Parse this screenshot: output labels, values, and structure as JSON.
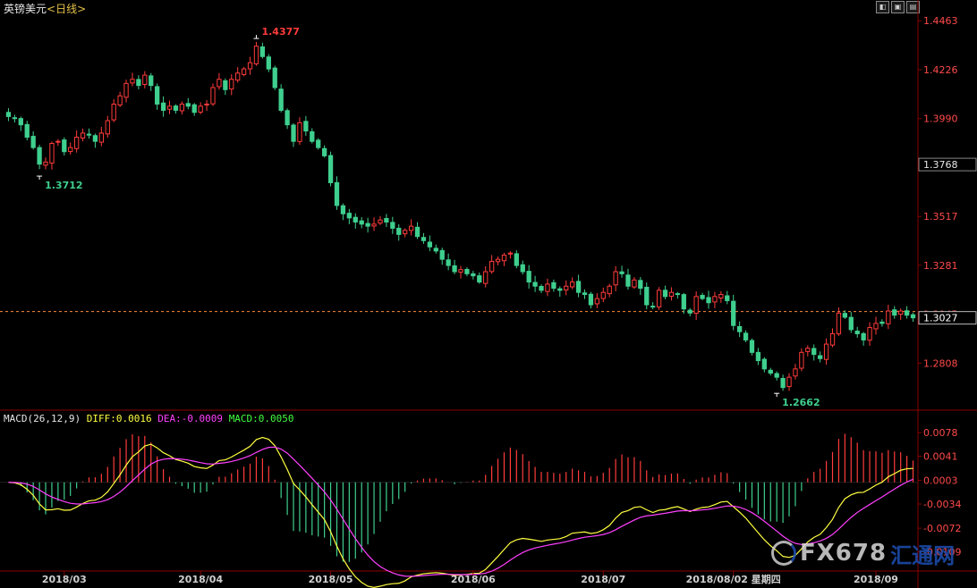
{
  "header": {
    "title": "英镑美元",
    "period": "<日线>"
  },
  "toolbar": {
    "buttons": [
      "◧",
      "▣",
      "▤"
    ]
  },
  "macd_header": {
    "params": "MACD(26,12,9)",
    "diff": "DIFF:0.0016",
    "dea": "DEA:-0.0009",
    "macd": "MACD:0.0050"
  },
  "watermark": {
    "brand": "FX678",
    "cn": "汇通网"
  },
  "colors": {
    "up": "#ff3b3b",
    "down": "#3fcf8e",
    "diff": "#ffff40",
    "dea": "#ff40ff",
    "grid": "#8a0000",
    "axis_text": "#ff4a4a",
    "dashed": "#ff8a3a",
    "date_text": "#d0d0d0"
  },
  "chart_data": [
    {
      "type": "candlestick",
      "title": "英镑美元<日线>",
      "ylim": [
        1.2585,
        1.452
      ],
      "yticks": [
        "1.4463",
        "1.4226",
        "1.3990",
        "1.3517",
        "1.3281",
        "1.3045",
        "1.2808"
      ],
      "current_price_label": "1.3768",
      "last_price_label": "1.3027",
      "last_price": 1.3027,
      "annotations": [
        {
          "label": "1.3712",
          "value": 1.3712,
          "index": 5
        },
        {
          "label": "1.4377",
          "value": 1.4377,
          "index": 40
        },
        {
          "label": "1.2662",
          "value": 1.2662,
          "index": 124
        }
      ],
      "x_labels": [
        {
          "label": "2018/03",
          "index": 9
        },
        {
          "label": "2018/04",
          "index": 31
        },
        {
          "label": "2018/05",
          "index": 52
        },
        {
          "label": "2018/06",
          "index": 75
        },
        {
          "label": "2018/07",
          "index": 96
        },
        {
          "label": "2018/08/02 星期四",
          "index": 117
        },
        {
          "label": "2018/09",
          "index": 140
        }
      ],
      "close": [
        1.4,
        1.399,
        1.396,
        1.39,
        1.385,
        1.377,
        1.378,
        1.387,
        1.388,
        1.383,
        1.385,
        1.39,
        1.392,
        1.391,
        1.388,
        1.392,
        1.398,
        1.406,
        1.41,
        1.416,
        1.418,
        1.415,
        1.42,
        1.415,
        1.406,
        1.403,
        1.405,
        1.403,
        1.406,
        1.405,
        1.402,
        1.405,
        1.406,
        1.414,
        1.418,
        1.413,
        1.418,
        1.421,
        1.423,
        1.426,
        1.434,
        1.429,
        1.423,
        1.414,
        1.403,
        1.396,
        1.388,
        1.397,
        1.393,
        1.388,
        1.385,
        1.381,
        1.368,
        1.357,
        1.353,
        1.351,
        1.349,
        1.348,
        1.347,
        1.348,
        1.35,
        1.349,
        1.346,
        1.343,
        1.345,
        1.347,
        1.342,
        1.34,
        1.337,
        1.335,
        1.331,
        1.328,
        1.325,
        1.326,
        1.324,
        1.323,
        1.32,
        1.325,
        1.33,
        1.331,
        1.333,
        1.334,
        1.328,
        1.325,
        1.32,
        1.318,
        1.316,
        1.319,
        1.317,
        1.316,
        1.318,
        1.32,
        1.315,
        1.314,
        1.309,
        1.312,
        1.315,
        1.318,
        1.325,
        1.324,
        1.318,
        1.321,
        1.317,
        1.309,
        1.308,
        1.316,
        1.313,
        1.315,
        1.314,
        1.307,
        1.305,
        1.313,
        1.312,
        1.31,
        1.313,
        1.314,
        1.311,
        1.299,
        1.296,
        1.292,
        1.286,
        1.282,
        1.278,
        1.276,
        1.274,
        1.269,
        1.274,
        1.278,
        1.286,
        1.288,
        1.285,
        1.283,
        1.29,
        1.295,
        1.305,
        1.303,
        1.297,
        1.295,
        1.292,
        1.298,
        1.3,
        1.3,
        1.306,
        1.304,
        1.306,
        1.304,
        1.3027
      ],
      "note_close_series": "daily close values, March–September 2018"
    },
    {
      "type": "macd",
      "title": "MACD(26,12,9)",
      "ylim": [
        -0.0135,
        0.0095
      ],
      "yticks": [
        "0.0078",
        "0.0041",
        "0.0003",
        "-0.0034",
        "-0.0072",
        "-0.0109"
      ],
      "series": [
        {
          "name": "DIFF",
          "value_label": "0.0016"
        },
        {
          "name": "DEA",
          "value_label": "-0.0009"
        },
        {
          "name": "MACD",
          "value_label": "0.0050"
        }
      ]
    }
  ]
}
